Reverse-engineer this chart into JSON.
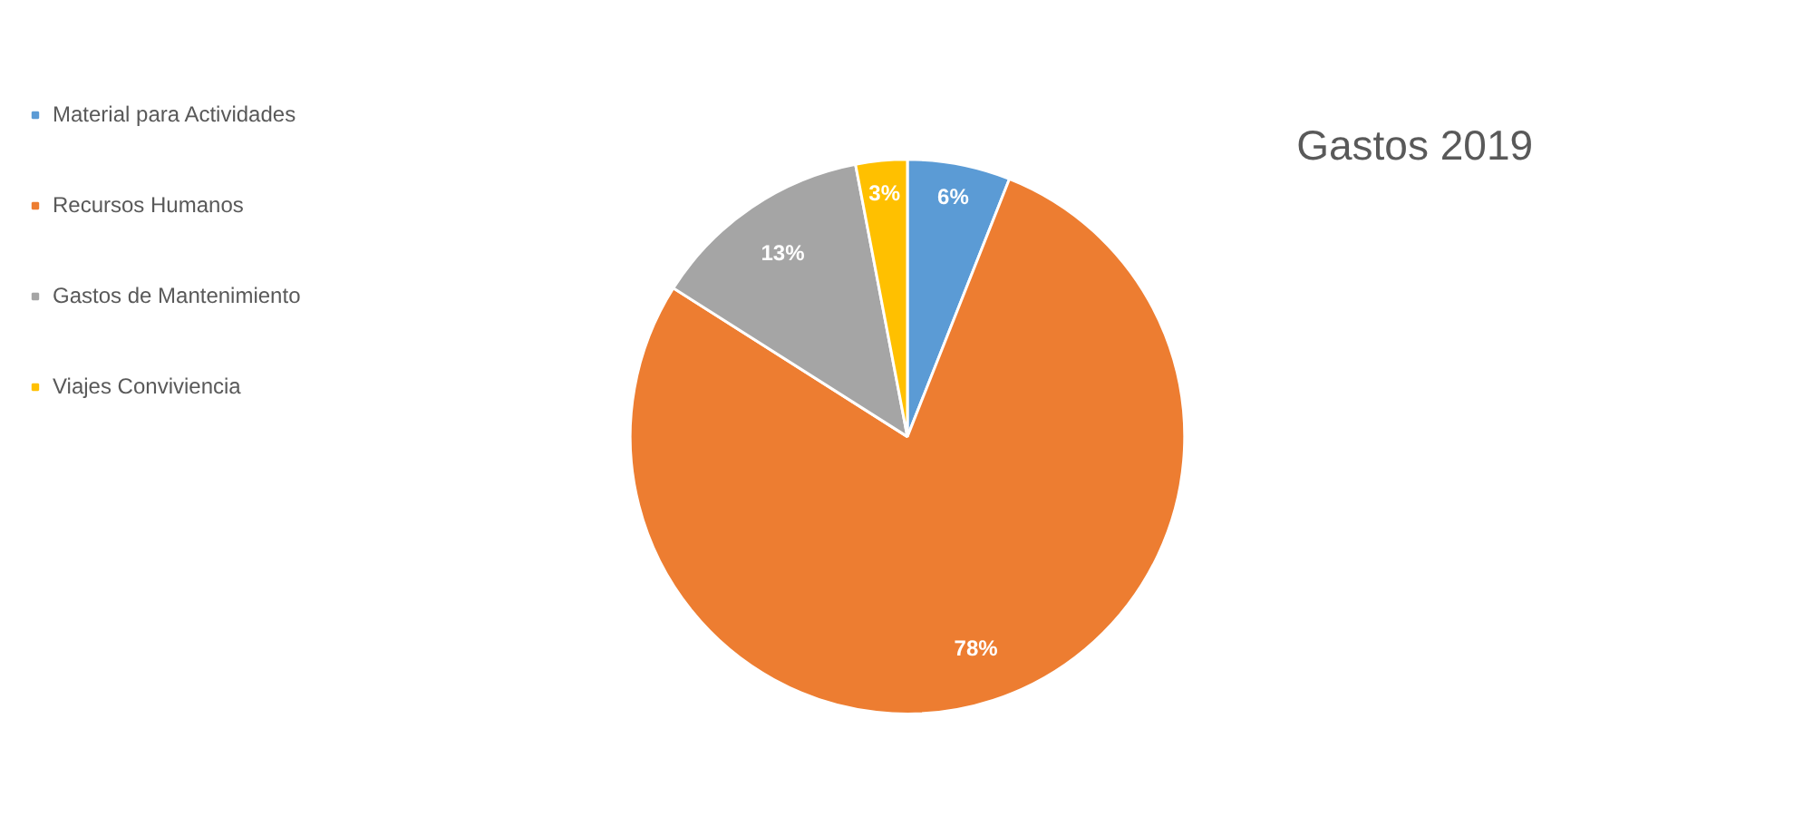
{
  "chart_data": {
    "type": "pie",
    "title": "Gastos 2019",
    "categories": [
      "Material para Actividades",
      "Recursos Humanos",
      "Gastos de Mantenimiento",
      "Viajes Conviviencia"
    ],
    "values": [
      6,
      78,
      13,
      3
    ],
    "colors": [
      "#5b9bd5",
      "#ed7d31",
      "#a5a5a5",
      "#ffc000"
    ],
    "value_labels": [
      "6%",
      "78%",
      "13%",
      "3%"
    ],
    "legend": "left"
  }
}
